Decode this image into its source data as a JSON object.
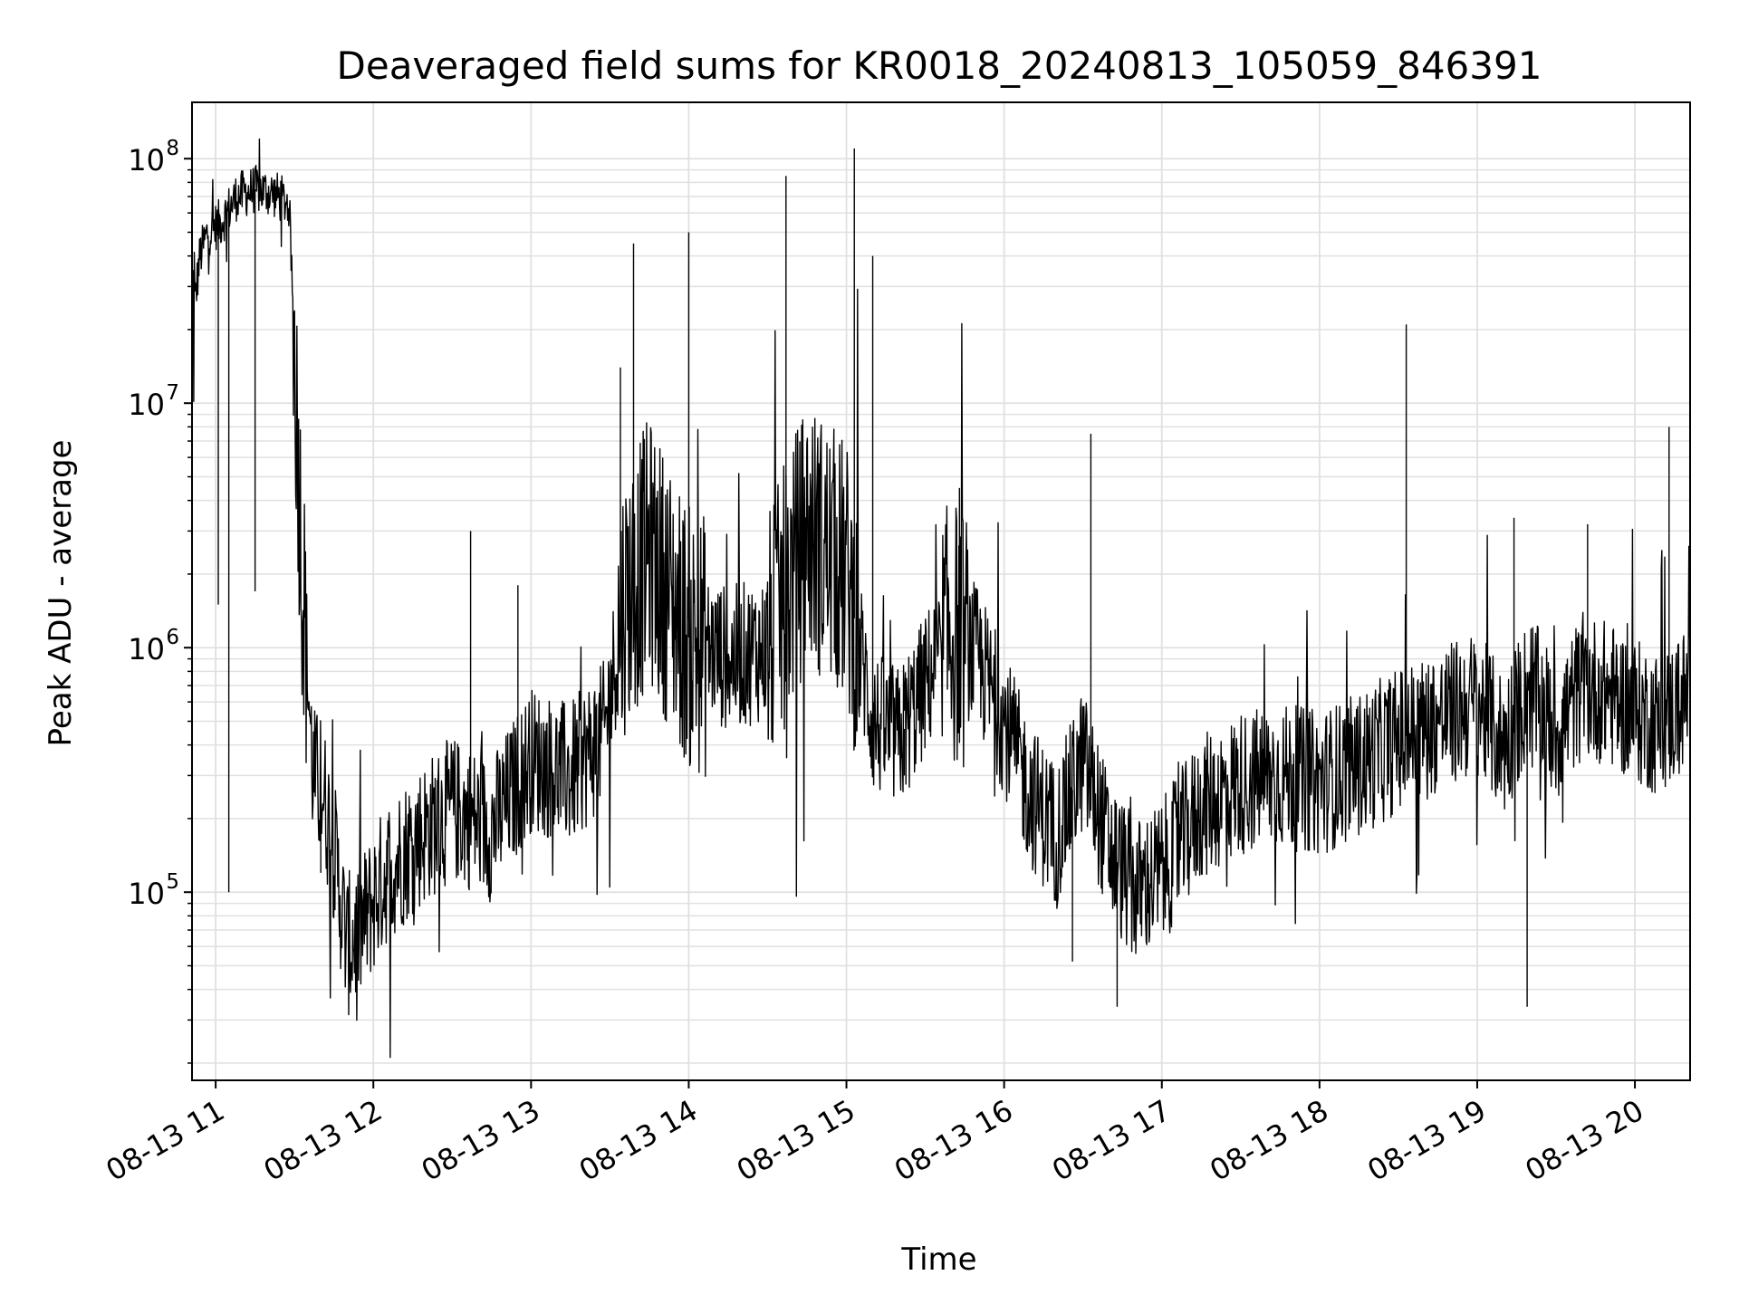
{
  "chart_data": {
    "type": "line",
    "title": "Deaveraged field sums for KR0018_20240813_105059_846391",
    "xlabel": "Time",
    "ylabel": "Peak ADU - average",
    "x_scale": "time",
    "y_scale": "log",
    "xlim": [
      "2024-08-13 10:51",
      "2024-08-13 20:21"
    ],
    "ylim": [
      17000,
      170000000
    ],
    "grid": {
      "major": true,
      "minor_y": true,
      "color": "#e0e0e0"
    },
    "line_color": "#000000",
    "x_ticks": [
      "2024-08-13 11:00",
      "2024-08-13 12:00",
      "2024-08-13 13:00",
      "2024-08-13 14:00",
      "2024-08-13 15:00",
      "2024-08-13 16:00",
      "2024-08-13 17:00",
      "2024-08-13 18:00",
      "2024-08-13 19:00",
      "2024-08-13 20:00"
    ],
    "x_tick_labels": [
      "08-13 11",
      "08-13 12",
      "08-13 13",
      "08-13 14",
      "08-13 15",
      "08-13 16",
      "08-13 17",
      "08-13 18",
      "08-13 19",
      "08-13 20"
    ],
    "y_ticks": [
      {
        "value": 100000,
        "base": "10",
        "exp": "5"
      },
      {
        "value": 1000000,
        "base": "10",
        "exp": "6"
      },
      {
        "value": 10000000,
        "base": "10",
        "exp": "7"
      },
      {
        "value": 100000000,
        "base": "10",
        "exp": "8"
      }
    ],
    "series": [
      {
        "x": [
          "2024-08-13 10:51",
          "2024-08-13 10:54",
          "2024-08-13 10:57",
          "2024-08-13 11:02",
          "2024-08-13 11:08",
          "2024-08-13 11:15",
          "2024-08-13 11:22",
          "2024-08-13 11:28",
          "2024-08-13 11:33",
          "2024-08-13 11:37",
          "2024-08-13 11:41",
          "2024-08-13 11:45",
          "2024-08-13 11:50",
          "2024-08-13 11:55",
          "2024-08-13 12:05",
          "2024-08-13 12:15",
          "2024-08-13 12:30",
          "2024-08-13 12:45",
          "2024-08-13 13:00",
          "2024-08-13 13:15",
          "2024-08-13 13:28",
          "2024-08-13 13:35",
          "2024-08-13 13:45",
          "2024-08-13 14:00",
          "2024-08-13 14:15",
          "2024-08-13 14:30",
          "2024-08-13 14:45",
          "2024-08-13 15:00",
          "2024-08-13 15:10",
          "2024-08-13 15:20",
          "2024-08-13 15:30",
          "2024-08-13 15:40",
          "2024-08-13 15:50",
          "2024-08-13 16:00",
          "2024-08-13 16:10",
          "2024-08-13 16:20",
          "2024-08-13 16:30",
          "2024-08-13 16:40",
          "2024-08-13 16:50",
          "2024-08-13 17:00",
          "2024-08-13 17:15",
          "2024-08-13 17:30",
          "2024-08-13 17:45",
          "2024-08-13 18:00",
          "2024-08-13 18:15",
          "2024-08-13 18:30",
          "2024-08-13 18:45",
          "2024-08-13 19:00",
          "2024-08-13 19:10",
          "2024-08-13 19:20",
          "2024-08-13 19:30",
          "2024-08-13 19:40",
          "2024-08-13 19:50",
          "2024-08-13 20:00",
          "2024-08-13 20:10",
          "2024-08-13 20:21"
        ],
        "y": [
          20000000,
          40000000,
          50000000,
          55000000,
          70000000,
          75000000,
          72000000,
          65000000,
          2000000,
          300000,
          250000,
          150000,
          60000,
          70000,
          120000,
          160000,
          220000,
          180000,
          350000,
          300000,
          450000,
          1500000,
          2500000,
          1100000,
          900000,
          1000000,
          3000000,
          2000000,
          500000,
          420000,
          700000,
          1200000,
          900000,
          500000,
          250000,
          170000,
          350000,
          150000,
          100000,
          120000,
          220000,
          280000,
          300000,
          280000,
          330000,
          420000,
          500000,
          600000,
          400000,
          700000,
          450000,
          700000,
          650000,
          550000,
          480000,
          650000
        ]
      }
    ],
    "spikes": [
      {
        "x": "2024-08-13 11:01",
        "y": 1500000
      },
      {
        "x": "2024-08-13 11:05",
        "y": 100000
      },
      {
        "x": "2024-08-13 11:15",
        "y": 1700000
      },
      {
        "x": "2024-08-13 11:40",
        "y": 120000
      },
      {
        "x": "2024-08-13 12:37",
        "y": 3000000
      },
      {
        "x": "2024-08-13 12:55",
        "y": 1800000
      },
      {
        "x": "2024-08-13 13:34",
        "y": 14000000
      },
      {
        "x": "2024-08-13 13:39",
        "y": 45000000
      },
      {
        "x": "2024-08-13 14:00",
        "y": 50000000
      },
      {
        "x": "2024-08-13 14:37",
        "y": 85000000
      },
      {
        "x": "2024-08-13 15:03",
        "y": 110000000
      },
      {
        "x": "2024-08-13 15:10",
        "y": 40000000
      },
      {
        "x": "2024-08-13 15:22",
        "y": 300000
      },
      {
        "x": "2024-08-13 15:43",
        "y": 4500000
      },
      {
        "x": "2024-08-13 16:33",
        "y": 7500000
      },
      {
        "x": "2024-08-13 16:26",
        "y": 52000
      },
      {
        "x": "2024-08-13 16:43",
        "y": 34000
      },
      {
        "x": "2024-08-13 18:33",
        "y": 21000000
      },
      {
        "x": "2024-08-13 19:14",
        "y": 3400000
      },
      {
        "x": "2024-08-13 19:19",
        "y": 34000
      },
      {
        "x": "2024-08-13 19:42",
        "y": 3200000
      },
      {
        "x": "2024-08-13 20:13",
        "y": 8000000
      }
    ]
  }
}
